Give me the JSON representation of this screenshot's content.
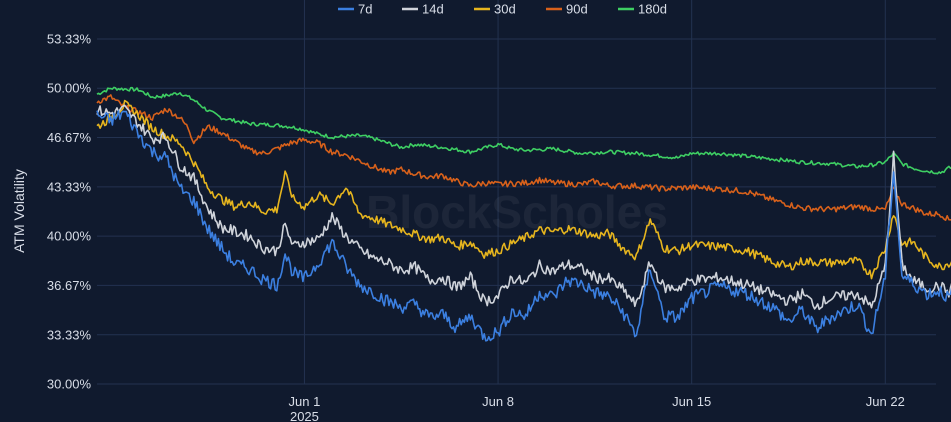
{
  "chart_data": {
    "type": "line",
    "title": "",
    "xlabel": "",
    "ylabel": "ATM Volatility",
    "watermark": "BlockScholes",
    "grid": true,
    "legend_position": "top-center",
    "y_ticks": [
      "53.33%",
      "50.00%",
      "46.67%",
      "43.33%",
      "40.00%",
      "36.67%",
      "33.33%",
      "30.00%"
    ],
    "ylim": [
      30.0,
      53.33
    ],
    "x_ticks": [
      {
        "label": "Jun 1",
        "sublabel": "2025",
        "day": 1
      },
      {
        "label": "Jun 8",
        "sublabel": "",
        "day": 8
      },
      {
        "label": "Jun 15",
        "sublabel": "",
        "day": 15
      },
      {
        "label": "Jun 22",
        "sublabel": "",
        "day": 22
      }
    ],
    "x_range_days": [
      "2025-05-25T12:00",
      "2025-06-24T20:00"
    ],
    "series": [
      {
        "name": "180d",
        "color": "#3ecf63",
        "points": [
          [
            -6.5,
            49.6
          ],
          [
            -6,
            50.0
          ],
          [
            -5,
            49.9
          ],
          [
            -4.5,
            49.4
          ],
          [
            -4,
            49.5
          ],
          [
            -3.5,
            49.7
          ],
          [
            -3,
            49.2
          ],
          [
            -2.5,
            48.5
          ],
          [
            -2,
            48.0
          ],
          [
            -1.5,
            47.8
          ],
          [
            -1,
            47.6
          ],
          [
            0,
            47.5
          ],
          [
            0.5,
            47.4
          ],
          [
            1,
            47.2
          ],
          [
            1.5,
            46.9
          ],
          [
            2,
            46.7
          ],
          [
            3,
            46.8
          ],
          [
            3.5,
            46.6
          ],
          [
            4,
            46.3
          ],
          [
            4.5,
            46.0
          ],
          [
            5,
            46.2
          ],
          [
            6,
            46.0
          ],
          [
            7,
            45.7
          ],
          [
            8,
            46.2
          ],
          [
            8.5,
            45.9
          ],
          [
            9,
            45.8
          ],
          [
            10,
            45.9
          ],
          [
            11,
            45.6
          ],
          [
            12,
            45.7
          ],
          [
            13,
            45.6
          ],
          [
            14,
            45.4
          ],
          [
            14.5,
            45.3
          ],
          [
            15,
            45.6
          ],
          [
            16,
            45.6
          ],
          [
            17,
            45.4
          ],
          [
            18,
            45.2
          ],
          [
            19,
            45.0
          ],
          [
            20,
            44.9
          ],
          [
            21,
            44.7
          ],
          [
            21.5,
            44.8
          ],
          [
            22,
            45.0
          ],
          [
            22.3,
            45.6
          ],
          [
            22.6,
            44.9
          ],
          [
            23,
            44.6
          ],
          [
            23.5,
            44.4
          ],
          [
            24,
            44.3
          ],
          [
            24.3,
            44.6
          ],
          [
            24.7,
            44.7
          ]
        ]
      },
      {
        "name": "90d",
        "color": "#d8611b",
        "points": [
          [
            -6.5,
            49.1
          ],
          [
            -6,
            49.4
          ],
          [
            -5.5,
            48.7
          ],
          [
            -5,
            48.4
          ],
          [
            -4.5,
            48.0
          ],
          [
            -4,
            48.6
          ],
          [
            -3.5,
            48.0
          ],
          [
            -3.2,
            47.3
          ],
          [
            -3,
            46.4
          ],
          [
            -2.5,
            47.4
          ],
          [
            -2,
            47.0
          ],
          [
            -1.5,
            46.4
          ],
          [
            -1,
            45.8
          ],
          [
            -0.5,
            45.6
          ],
          [
            0,
            45.9
          ],
          [
            0.5,
            46.3
          ],
          [
            1,
            46.5
          ],
          [
            1.5,
            46.3
          ],
          [
            2,
            45.7
          ],
          [
            2.5,
            45.5
          ],
          [
            3,
            45.1
          ],
          [
            3.5,
            44.7
          ],
          [
            4,
            44.3
          ],
          [
            4.5,
            44.5
          ],
          [
            5,
            44.2
          ],
          [
            5.5,
            44.0
          ],
          [
            6,
            44.1
          ],
          [
            6.5,
            43.7
          ],
          [
            7,
            43.4
          ],
          [
            7.5,
            43.6
          ],
          [
            8,
            43.5
          ],
          [
            9,
            43.6
          ],
          [
            9.5,
            43.8
          ],
          [
            10,
            43.6
          ],
          [
            11,
            43.5
          ],
          [
            11.5,
            43.7
          ],
          [
            12,
            43.4
          ],
          [
            13,
            43.4
          ],
          [
            14,
            43.2
          ],
          [
            15,
            43.3
          ],
          [
            16,
            43.2
          ],
          [
            17,
            43.0
          ],
          [
            18,
            42.4
          ],
          [
            19,
            41.9
          ],
          [
            20,
            41.8
          ],
          [
            21,
            42.0
          ],
          [
            21.7,
            41.8
          ],
          [
            22,
            41.8
          ],
          [
            22.3,
            43.2
          ],
          [
            22.6,
            42.2
          ],
          [
            23,
            41.9
          ],
          [
            23.5,
            41.5
          ],
          [
            24,
            41.5
          ],
          [
            24.3,
            41.1
          ],
          [
            24.7,
            41.5
          ]
        ]
      },
      {
        "name": "30d",
        "color": "#e6b51e",
        "points": [
          [
            -6.5,
            47.4
          ],
          [
            -6,
            48.0
          ],
          [
            -5.5,
            48.9
          ],
          [
            -5,
            48.2
          ],
          [
            -4.5,
            47.3
          ],
          [
            -4,
            46.8
          ],
          [
            -3.5,
            46.3
          ],
          [
            -3,
            45.0
          ],
          [
            -2.5,
            43.3
          ],
          [
            -2,
            42.5
          ],
          [
            -1.5,
            42.0
          ],
          [
            -1,
            42.3
          ],
          [
            -0.5,
            41.7
          ],
          [
            0,
            41.8
          ],
          [
            0.3,
            44.2
          ],
          [
            0.6,
            42.5
          ],
          [
            1,
            42.0
          ],
          [
            1.5,
            42.8
          ],
          [
            2,
            42.2
          ],
          [
            2.5,
            43.3
          ],
          [
            3,
            41.5
          ],
          [
            3.5,
            41.2
          ],
          [
            4,
            40.8
          ],
          [
            4.5,
            40.5
          ],
          [
            5,
            40.1
          ],
          [
            5.5,
            39.8
          ],
          [
            6,
            39.9
          ],
          [
            6.5,
            39.3
          ],
          [
            7,
            39.6
          ],
          [
            7.5,
            38.8
          ],
          [
            8,
            39.0
          ],
          [
            8.5,
            39.5
          ],
          [
            9,
            39.9
          ],
          [
            9.5,
            40.4
          ],
          [
            10,
            40.3
          ],
          [
            10.5,
            40.5
          ],
          [
            11,
            40.3
          ],
          [
            11.5,
            40.0
          ],
          [
            12,
            40.2
          ],
          [
            12.5,
            39.2
          ],
          [
            13,
            38.6
          ],
          [
            13.5,
            41.1
          ],
          [
            14,
            39.2
          ],
          [
            14.5,
            39.0
          ],
          [
            15,
            39.4
          ],
          [
            16,
            39.3
          ],
          [
            17,
            39.0
          ],
          [
            18,
            38.2
          ],
          [
            18.5,
            37.9
          ],
          [
            19,
            38.3
          ],
          [
            20,
            38.2
          ],
          [
            21,
            38.3
          ],
          [
            21.5,
            37.4
          ],
          [
            22,
            39.2
          ],
          [
            22.3,
            41.6
          ],
          [
            22.6,
            39.5
          ],
          [
            23,
            39.6
          ],
          [
            23.5,
            38.5
          ],
          [
            24,
            37.9
          ],
          [
            24.3,
            38.2
          ],
          [
            24.7,
            38.7
          ]
        ]
      },
      {
        "name": "14d",
        "color": "#cfd3da",
        "points": [
          [
            -6.5,
            48.5
          ],
          [
            -6,
            48.3
          ],
          [
            -5.5,
            48.6
          ],
          [
            -5,
            47.6
          ],
          [
            -4.5,
            46.6
          ],
          [
            -4,
            46.7
          ],
          [
            -3.5,
            44.8
          ],
          [
            -3,
            43.9
          ],
          [
            -2.5,
            41.9
          ],
          [
            -2,
            40.6
          ],
          [
            -1.5,
            40.3
          ],
          [
            -1,
            40.0
          ],
          [
            -0.5,
            39.2
          ],
          [
            0,
            39.0
          ],
          [
            0.3,
            40.7
          ],
          [
            0.6,
            39.3
          ],
          [
            1,
            39.6
          ],
          [
            1.5,
            39.8
          ],
          [
            2,
            41.3
          ],
          [
            2.5,
            40.0
          ],
          [
            3,
            39.1
          ],
          [
            3.5,
            38.5
          ],
          [
            4,
            38.2
          ],
          [
            4.5,
            37.7
          ],
          [
            5,
            37.9
          ],
          [
            5.5,
            37.0
          ],
          [
            6,
            37.2
          ],
          [
            6.5,
            36.5
          ],
          [
            7,
            37.2
          ],
          [
            7.5,
            35.6
          ],
          [
            8,
            35.9
          ],
          [
            8.5,
            37.2
          ],
          [
            9,
            36.8
          ],
          [
            9.5,
            38.0
          ],
          [
            10,
            37.6
          ],
          [
            10.5,
            38.1
          ],
          [
            11,
            37.8
          ],
          [
            11.5,
            37.2
          ],
          [
            12,
            37.1
          ],
          [
            12.5,
            36.4
          ],
          [
            13,
            35.3
          ],
          [
            13.5,
            38.2
          ],
          [
            14,
            36.5
          ],
          [
            14.5,
            36.5
          ],
          [
            15,
            37.0
          ],
          [
            16,
            37.2
          ],
          [
            17,
            36.7
          ],
          [
            18,
            36.0
          ],
          [
            18.5,
            35.6
          ],
          [
            19,
            36.1
          ],
          [
            19.5,
            35.3
          ],
          [
            20,
            35.8
          ],
          [
            21,
            36.1
          ],
          [
            21.5,
            35.2
          ],
          [
            22,
            38.0
          ],
          [
            22.3,
            45.4
          ],
          [
            22.6,
            38.1
          ],
          [
            23,
            37.0
          ],
          [
            23.5,
            36.5
          ],
          [
            24,
            36.6
          ],
          [
            24.3,
            36.2
          ],
          [
            24.7,
            37.5
          ]
        ]
      },
      {
        "name": "7d",
        "color": "#3b7fe0",
        "points": [
          [
            -6.5,
            48.2
          ],
          [
            -6,
            47.8
          ],
          [
            -5.5,
            48.4
          ],
          [
            -5,
            46.9
          ],
          [
            -4.5,
            45.7
          ],
          [
            -4,
            45.3
          ],
          [
            -3.5,
            43.2
          ],
          [
            -3,
            42.4
          ],
          [
            -2.5,
            40.5
          ],
          [
            -2,
            39.2
          ],
          [
            -1.5,
            38.1
          ],
          [
            -1,
            37.8
          ],
          [
            -0.5,
            37.1
          ],
          [
            0,
            36.7
          ],
          [
            0.3,
            38.8
          ],
          [
            0.6,
            37.5
          ],
          [
            1,
            37.1
          ],
          [
            1.5,
            38.2
          ],
          [
            2,
            39.6
          ],
          [
            2.5,
            37.9
          ],
          [
            3,
            36.7
          ],
          [
            3.5,
            36.2
          ],
          [
            4,
            35.6
          ],
          [
            4.5,
            35.2
          ],
          [
            5,
            35.4
          ],
          [
            5.5,
            34.5
          ],
          [
            6,
            34.7
          ],
          [
            6.5,
            33.8
          ],
          [
            7,
            34.6
          ],
          [
            7.5,
            33.2
          ],
          [
            8,
            33.5
          ],
          [
            8.5,
            34.9
          ],
          [
            9,
            34.6
          ],
          [
            9.5,
            36.2
          ],
          [
            10,
            35.9
          ],
          [
            10.5,
            37.0
          ],
          [
            11,
            36.8
          ],
          [
            11.5,
            36.2
          ],
          [
            12,
            35.9
          ],
          [
            12.5,
            34.9
          ],
          [
            13,
            33.3
          ],
          [
            13.5,
            37.9
          ],
          [
            14,
            34.6
          ],
          [
            14.5,
            34.5
          ],
          [
            15,
            35.8
          ],
          [
            16,
            36.6
          ],
          [
            17,
            36.1
          ],
          [
            18,
            35.1
          ],
          [
            18.5,
            34.2
          ],
          [
            19,
            35.0
          ],
          [
            19.5,
            33.7
          ],
          [
            20,
            34.5
          ],
          [
            21,
            35.4
          ],
          [
            21.5,
            33.3
          ],
          [
            22,
            37.3
          ],
          [
            22.3,
            44.5
          ],
          [
            22.6,
            37.3
          ],
          [
            23,
            36.8
          ],
          [
            23.5,
            36.1
          ],
          [
            24,
            36.3
          ],
          [
            24.3,
            35.8
          ],
          [
            24.7,
            37.3
          ]
        ]
      }
    ],
    "legend_order": [
      "7d",
      "14d",
      "30d",
      "90d",
      "180d"
    ]
  }
}
